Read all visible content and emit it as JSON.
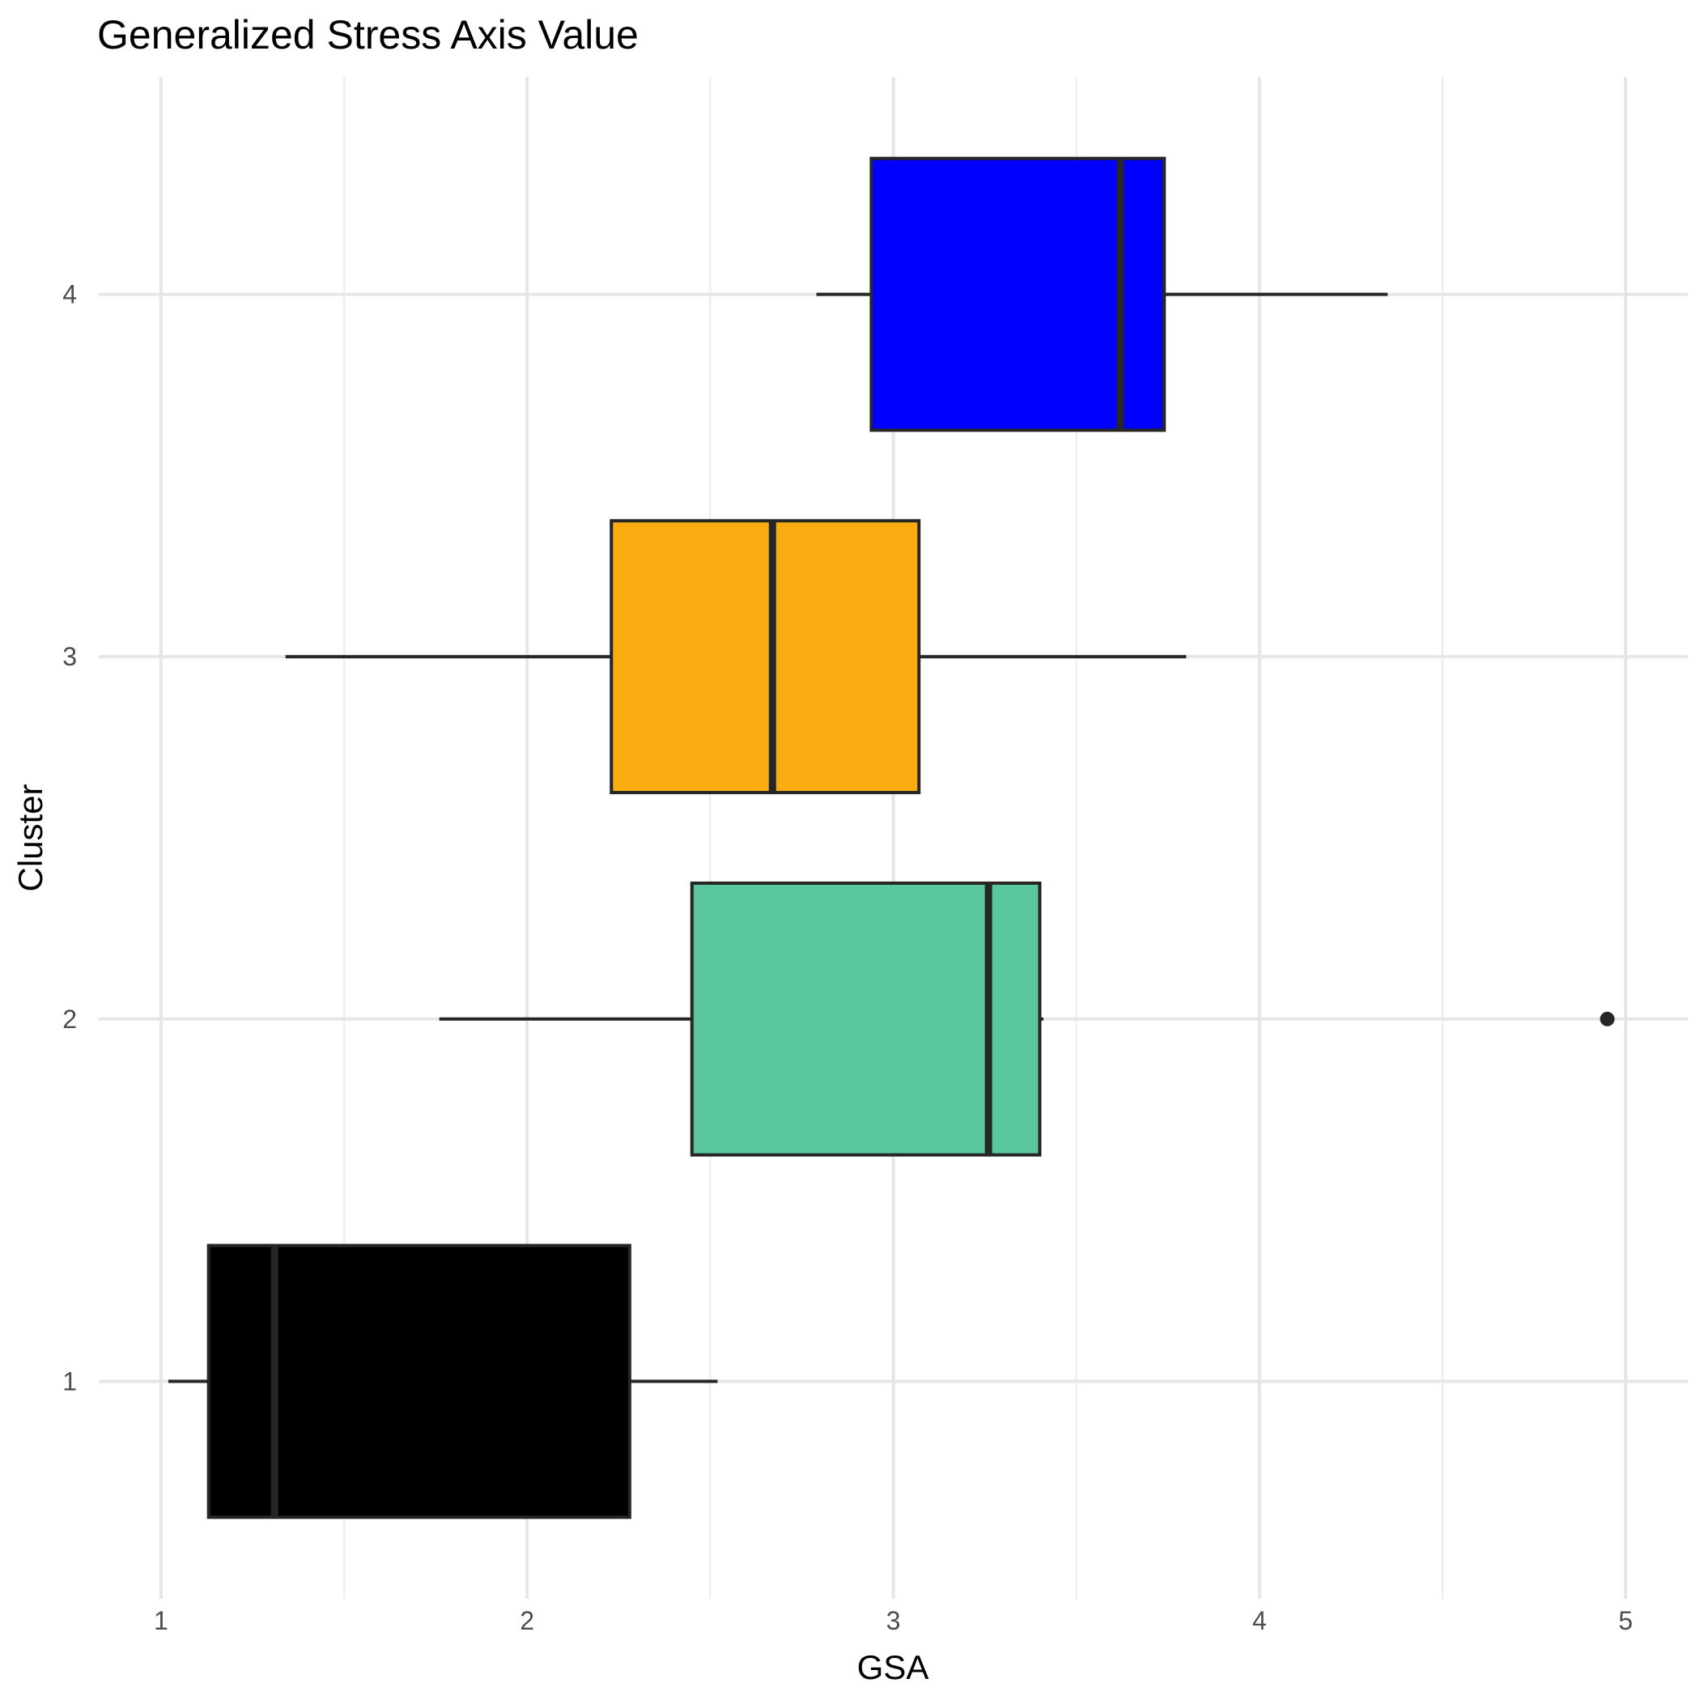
{
  "chart_data": {
    "type": "boxplot",
    "orientation": "horizontal",
    "title": "Generalized Stress Axis Value",
    "xlabel": "GSA",
    "ylabel": "Cluster",
    "xlim": [
      0.83,
      5.17
    ],
    "x_ticks": [
      1,
      2,
      3,
      4,
      5
    ],
    "x_tick_labels": [
      "1",
      "2",
      "3",
      "4",
      "5"
    ],
    "grid": true,
    "legend": "none",
    "categories": [
      "1",
      "2",
      "3",
      "4"
    ],
    "boxes": [
      {
        "cluster": "1",
        "whisker_low": 1.02,
        "q1": 1.13,
        "median": 1.31,
        "q3": 2.28,
        "whisker_high": 2.52,
        "outliers": [],
        "color": "#000000"
      },
      {
        "cluster": "2",
        "whisker_low": 1.76,
        "q1": 2.45,
        "median": 3.26,
        "q3": 3.4,
        "whisker_high": 3.41,
        "outliers": [
          4.95
        ],
        "color": "#59C69B"
      },
      {
        "cluster": "3",
        "whisker_low": 1.34,
        "q1": 2.23,
        "median": 2.67,
        "q3": 3.07,
        "whisker_high": 3.8,
        "outliers": [],
        "color": "#FBAC11"
      },
      {
        "cluster": "4",
        "whisker_low": 2.79,
        "q1": 2.94,
        "median": 3.62,
        "q3": 3.74,
        "whisker_high": 4.35,
        "outliers": [],
        "color": "#0000FF"
      }
    ]
  }
}
